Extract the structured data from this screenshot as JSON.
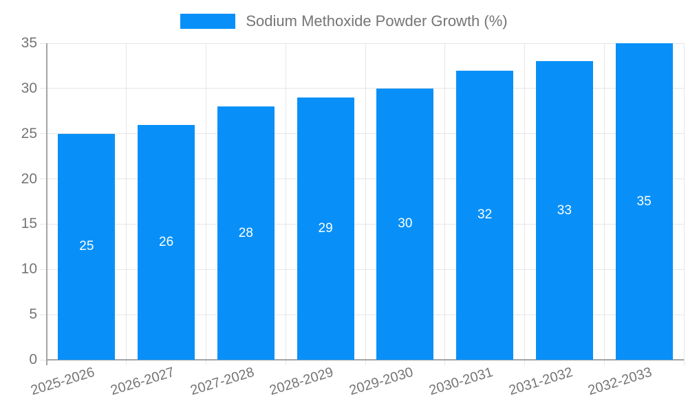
{
  "legend": {
    "label": "Sodium Methoxide Powder Growth (%)"
  },
  "colors": {
    "bar": "#0890f8",
    "grid": "#e6e6e6",
    "axis": "#a3a3a3",
    "tick_label": "#757575",
    "value_label": "#ffffff",
    "background": "#ffffff"
  },
  "chart_data": {
    "type": "bar",
    "title": "Sodium Methoxide Powder Growth (%)",
    "categories": [
      "2025-2026",
      "2026-2027",
      "2027-2028",
      "2028-2029",
      "2029-2030",
      "2030-2031",
      "2031-2032",
      "2032-2033"
    ],
    "values": [
      25,
      26,
      28,
      29,
      30,
      32,
      33,
      35
    ],
    "series": [
      {
        "name": "Sodium Methoxide Powder Growth (%)",
        "values": [
          25,
          26,
          28,
          29,
          30,
          32,
          33,
          35
        ]
      }
    ],
    "xlabel": "",
    "ylabel": "",
    "ylim": [
      0,
      35
    ],
    "yticks": [
      0,
      5,
      10,
      15,
      20,
      25,
      30,
      35
    ],
    "grid": true,
    "legend_position": "top",
    "value_labels": "inside-middle",
    "x_label_rotation_deg": -17
  }
}
